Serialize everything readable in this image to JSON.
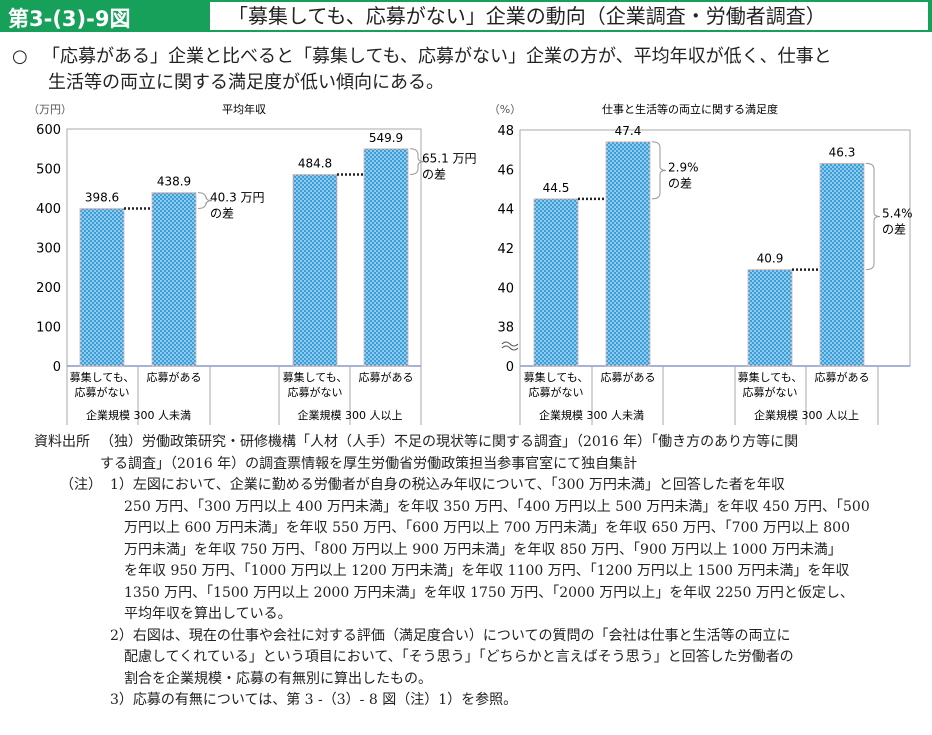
{
  "header": {
    "figure_number": "第3-(3)-9図",
    "title": "「募集しても、応募がない」企業の動向（企業調査・労働者調査）"
  },
  "lead": {
    "marker": "○",
    "line1": "「応募がある」企業と比べると「募集しても、応募がない」企業の方が、平均年収が低く、仕事と",
    "line2": "生活等の両立に関する満足度が低い傾向にある。"
  },
  "colors": {
    "header": "#17a05a",
    "bar": "#3a9fd8",
    "bar_edge": "#1a6fa8"
  },
  "chart_data": [
    {
      "type": "bar",
      "title": "平均年収",
      "ylabel": "（万円）",
      "ylim": [
        0,
        600
      ],
      "yticks": [
        0,
        100,
        200,
        300,
        400,
        500,
        600
      ],
      "categories": [
        "募集しても、\n応募がない",
        "応募がある",
        "募集しても、\n応募がない",
        "応募がある"
      ],
      "groups": [
        "企業規模 300 人未満",
        "企業規模 300 人以上"
      ],
      "values": [
        398.6,
        438.9,
        484.8,
        549.9
      ],
      "value_labels": [
        "398.6",
        "438.9",
        "484.8",
        "549.9"
      ],
      "annotations": [
        {
          "label": "40.3 万円",
          "label2": "の差",
          "from": 0,
          "to": 1
        },
        {
          "label": "65.1 万円",
          "label2": "の差",
          "from": 2,
          "to": 3
        }
      ]
    },
    {
      "type": "bar",
      "title": "仕事と生活等の両立に関する満足度",
      "ylabel": "（%）",
      "ylim": [
        36,
        48
      ],
      "axis_break": true,
      "yticks": [
        38,
        40,
        42,
        44,
        46,
        48
      ],
      "categories": [
        "募集しても、\n応募がない",
        "応募がある",
        "募集しても、\n応募がない",
        "応募がある"
      ],
      "groups": [
        "企業規模 300 人未満",
        "企業規模 300 人以上"
      ],
      "values": [
        44.5,
        47.4,
        40.9,
        46.3
      ],
      "value_labels": [
        "44.5",
        "47.4",
        "40.9",
        "46.3"
      ],
      "annotations": [
        {
          "label": "2.9%",
          "label2": "の差",
          "from": 0,
          "to": 1
        },
        {
          "label": "5.4%",
          "label2": "の差",
          "from": 2,
          "to": 3
        }
      ]
    }
  ],
  "notes": {
    "source_label": "資料出所",
    "source_l1": "（独）労働政策研究・研修機構「人材（人手）不足の現状等に関する調査」（2016 年）「働き方のあり方等に関",
    "source_l2": "する調査」（2016 年）の調査票情報を厚生労働省労働政策担当参事官室にて独自集計",
    "note_label": "（注）",
    "n1_l1": "1）左図において、企業に勤める労働者が自身の税込み年収について、「300 万円未満」と回答した者を年収",
    "n1_l2": "250 万円、「300 万円以上 400 万円未満」を年収 350 万円、「400 万円以上 500 万円未満」を年収 450 万円、「500",
    "n1_l3": "万円以上 600 万円未満」を年収 550 万円、「600 万円以上 700 万円未満」を年収 650 万円、「700 万円以上 800",
    "n1_l4": "万円未満」を年収 750 万円、「800 万円以上 900 万円未満」を年収 850 万円、「900 万円以上 1000 万円未満」",
    "n1_l5": "を年収 950 万円、「1000 万円以上 1200 万円未満」を年収 1100 万円、「1200 万円以上 1500 万円未満」を年収",
    "n1_l6": "1350 万円、「1500 万円以上 2000 万円未満」を年収 1750 万円、「2000 万円以上」を年収 2250 万円と仮定し、",
    "n1_l7": "平均年収を算出している。",
    "n2_l1": "2）右図は、現在の仕事や会社に対する評価（満足度合い）についての質問の「会社は仕事と生活等の両立に",
    "n2_l2": "配慮してくれている」という項目において、「そう思う」「どちらかと言えばそう思う」と回答した労働者の",
    "n2_l3": "割合を企業規模・応募の有無別に算出したもの。",
    "n3_l1": "3）応募の有無については、第 3 -（3）- 8 図（注）1）を参照。"
  }
}
